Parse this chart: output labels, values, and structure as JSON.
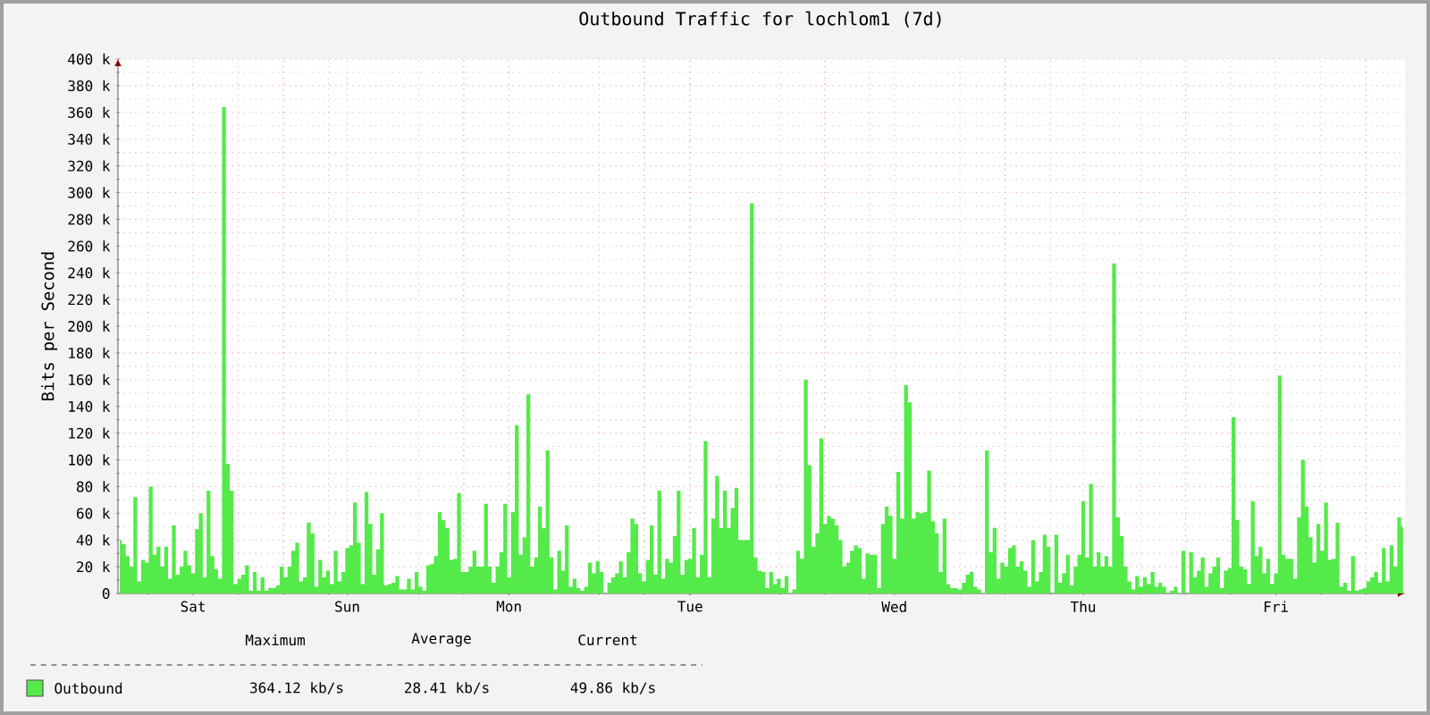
{
  "chart_data": {
    "type": "area",
    "title": "Outbound Traffic for lochlom1 (7d)",
    "ylabel": "Bits per Second",
    "categories": [
      null,
      null,
      null,
      null,
      null,
      null,
      null,
      null,
      null,
      null,
      null,
      null,
      null,
      null,
      null,
      null,
      null,
      null,
      null,
      "Sat",
      null,
      null,
      null,
      null,
      null,
      null,
      null,
      null,
      null,
      null,
      null,
      null,
      null,
      null,
      null,
      null,
      null,
      null,
      null,
      null,
      null,
      null,
      null,
      null,
      null,
      null,
      null,
      null,
      null,
      null,
      null,
      null,
      null,
      null,
      null,
      null,
      null,
      null,
      null,
      "Sun",
      null,
      null,
      null,
      null,
      null,
      null,
      null,
      null,
      null,
      null,
      null,
      null,
      null,
      null,
      null,
      null,
      null,
      null,
      null,
      null,
      null,
      null,
      null,
      null,
      null,
      null,
      null,
      null,
      null,
      null,
      null,
      null,
      null,
      null,
      null,
      null,
      null,
      null,
      null,
      null,
      null,
      "Mon",
      null,
      null,
      null,
      null,
      null,
      null,
      null,
      null,
      null,
      null,
      null,
      null,
      null,
      null,
      null,
      null,
      null,
      null,
      null,
      null,
      null,
      null,
      null,
      null,
      null,
      null,
      null,
      null,
      null,
      null,
      null,
      null,
      null,
      null,
      null,
      null,
      null,
      null,
      null,
      null,
      null,
      null,
      null,
      null,
      null,
      null,
      "Tue",
      null,
      null,
      null,
      null,
      null,
      null,
      null,
      null,
      null,
      null,
      null,
      null,
      null,
      null,
      null,
      null,
      null,
      null,
      null,
      null,
      null,
      null,
      null,
      null,
      null,
      null,
      null,
      null,
      null,
      null,
      null,
      null,
      null,
      null,
      null,
      null,
      null,
      null,
      null,
      null,
      null,
      null,
      null,
      null,
      null,
      null,
      null,
      null,
      null,
      null,
      null,
      null,
      "Wed",
      null,
      null,
      null,
      null,
      null,
      null,
      null,
      null,
      null,
      null,
      null,
      null,
      null,
      null,
      null,
      null,
      null,
      null,
      null,
      null,
      null,
      null,
      null,
      null,
      null,
      null,
      null,
      null,
      null,
      null,
      null,
      null,
      null,
      null,
      null,
      null,
      null,
      null,
      null,
      null,
      null,
      null,
      null,
      null,
      null,
      null,
      null,
      null,
      "Thu",
      null,
      null,
      null,
      null,
      null,
      null,
      null,
      null,
      null,
      null,
      null,
      null,
      null,
      null,
      null,
      null,
      null,
      null,
      null,
      null,
      null,
      null,
      null,
      null,
      null,
      null,
      null,
      null,
      null,
      null,
      null,
      null,
      null,
      null,
      null,
      null,
      null,
      null,
      null,
      null,
      null,
      null,
      null,
      null,
      null,
      null,
      null,
      null,
      null,
      "Fri",
      null,
      null,
      null,
      null,
      null,
      null,
      null,
      null,
      null,
      null,
      null,
      null,
      null,
      null,
      null,
      null,
      null,
      null,
      null,
      null,
      null,
      null,
      null,
      null,
      null,
      null,
      null,
      null,
      null,
      null,
      null,
      null,
      null
    ],
    "ylim": [
      0,
      400000
    ],
    "yticks": [
      0,
      {
        "value": 20000,
        "label": "20 k"
      },
      {
        "value": 40000,
        "label": "40 k"
      },
      {
        "value": 60000,
        "label": "60 k"
      },
      {
        "value": 80000,
        "label": "80 k"
      },
      {
        "value": 100000,
        "label": "100 k"
      },
      {
        "value": 120000,
        "label": "120 k"
      },
      {
        "value": 140000,
        "label": "140 k"
      },
      {
        "value": 160000,
        "label": "160 k"
      },
      {
        "value": 180000,
        "label": "180 k"
      },
      {
        "value": 200000,
        "label": "200 k"
      },
      {
        "value": 220000,
        "label": "220 k"
      },
      {
        "value": 240000,
        "label": "240 k"
      },
      {
        "value": 260000,
        "label": "260 k"
      },
      {
        "value": 280000,
        "label": "280 k"
      },
      {
        "value": 300000,
        "label": "300 k"
      },
      {
        "value": 320000,
        "label": "320 k"
      },
      {
        "value": 340000,
        "label": "340 k"
      },
      {
        "value": 360000,
        "label": "360 k"
      },
      {
        "value": 380000,
        "label": "380 k"
      },
      {
        "value": 400000,
        "label": "400 k"
      }
    ],
    "grid": true,
    "legend": "bottom",
    "annotations": [
      "Maximum",
      "Average",
      "Current",
      "364.12 kb/s",
      "28.41 kb/s",
      "49.86 kb/s"
    ],
    "series": [
      {
        "name": "Outbound",
        "color": "#54ea49",
        "values": [
          40000,
          37000,
          28000,
          20000,
          72000,
          9000,
          25000,
          23000,
          80000,
          29000,
          35000,
          20000,
          35000,
          11000,
          51000,
          14000,
          20000,
          32000,
          21000,
          15000,
          48000,
          60000,
          12000,
          77000,
          28000,
          18000,
          11000,
          364000,
          97000,
          77000,
          7000,
          11000,
          14000,
          21000,
          2000,
          16000,
          2000,
          12000,
          2000,
          4000,
          4000,
          6000,
          20000,
          12000,
          20000,
          32000,
          38000,
          9000,
          12000,
          53000,
          45000,
          5000,
          25000,
          12000,
          17000,
          7000,
          32000,
          9000,
          16000,
          34000,
          36000,
          68000,
          38000,
          7000,
          76000,
          52000,
          14000,
          33000,
          60000,
          6000,
          7000,
          8000,
          13000,
          3000,
          3000,
          11000,
          3000,
          16000,
          5000,
          2000,
          21000,
          22000,
          28000,
          61000,
          55000,
          49000,
          25000,
          26000,
          75000,
          16000,
          16000,
          20000,
          32000,
          20000,
          20000,
          67000,
          20000,
          8000,
          20000,
          31000,
          67000,
          12000,
          61000,
          126000,
          29000,
          42000,
          149000,
          20000,
          27000,
          65000,
          49000,
          107000,
          27000,
          3000,
          32000,
          17000,
          51000,
          5000,
          11000,
          4000,
          2000,
          5000,
          23000,
          15000,
          24000,
          16000,
          0,
          8000,
          12000,
          15000,
          24000,
          12000,
          31000,
          56000,
          52000,
          15000,
          9000,
          25000,
          51000,
          14000,
          77000,
          11000,
          26000,
          23000,
          43000,
          77000,
          14000,
          25000,
          26000,
          49000,
          12000,
          29000,
          114000,
          12000,
          56000,
          88000,
          49000,
          77000,
          49000,
          64000,
          79000,
          40000,
          40000,
          40000,
          292000,
          27000,
          17000,
          16000,
          4000,
          16000,
          7000,
          11000,
          4000,
          13000,
          0,
          3000,
          32000,
          26000,
          160000,
          96000,
          35000,
          45000,
          116000,
          52000,
          58000,
          56000,
          51000,
          40000,
          20000,
          23000,
          32000,
          36000,
          34000,
          11000,
          30000,
          29000,
          29000,
          4000,
          52000,
          65000,
          58000,
          26000,
          91000,
          56000,
          156000,
          143000,
          56000,
          61000,
          60000,
          61000,
          92000,
          54000,
          45000,
          16000,
          56000,
          7000,
          4000,
          4000,
          3000,
          8000,
          14000,
          16000,
          5000,
          3000,
          0,
          107000,
          31000,
          49000,
          11000,
          23000,
          20000,
          34000,
          36000,
          20000,
          24000,
          17000,
          5000,
          40000,
          9000,
          16000,
          44000,
          35000,
          0,
          44000,
          8000,
          15000,
          29000,
          6000,
          20000,
          29000,
          69000,
          27000,
          82000,
          20000,
          31000,
          20000,
          28000,
          20000,
          247000,
          57000,
          43000,
          20000,
          9000,
          3000,
          13000,
          5000,
          12000,
          7000,
          16000,
          5000,
          8000,
          5000,
          0,
          2000,
          5000,
          0,
          32000,
          0,
          31000,
          12000,
          17000,
          27000,
          5000,
          15000,
          20000,
          27000,
          4000,
          17000,
          19000,
          132000,
          55000,
          20000,
          18000,
          7000,
          69000,
          28000,
          35000,
          15000,
          26000,
          7000,
          15000,
          163000,
          29000,
          26000,
          26000,
          11000,
          57000,
          100000,
          65000,
          42000,
          23000,
          52000,
          32000,
          68000,
          25000,
          26000,
          53000,
          5000,
          8000,
          2000,
          28000,
          2000,
          3000,
          4000,
          9000,
          12000,
          16000,
          8000,
          34000,
          9000,
          36000,
          20000,
          57000,
          50000
        ]
      }
    ]
  }
}
